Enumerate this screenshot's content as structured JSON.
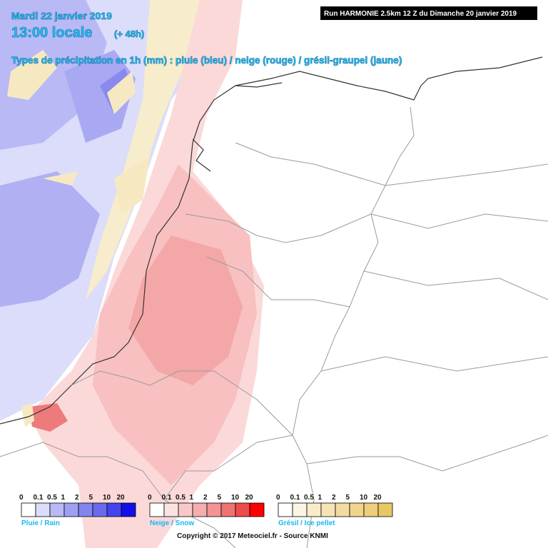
{
  "header": {
    "date": "Mardi 22 janvier 2019",
    "time": "13:00 locale",
    "lead": "(+ 48h)",
    "subtitle": "Types de précipitation en 1h (mm) : pluie (bleu) / neige (rouge) / grésil-graupel (jaune)",
    "run": "Run HARMONIE 2.5km 12 Z du Dimanche 20 janvier 2019"
  },
  "legends": [
    {
      "name": "Pluie / Rain",
      "ticks": [
        "0",
        "0.1",
        "0.5",
        "1",
        "2",
        "5",
        "10",
        "20"
      ]
    },
    {
      "name": "Neige / Snow",
      "ticks": [
        "0",
        "0.1",
        "0.5",
        "1",
        "2",
        "5",
        "10",
        "20"
      ]
    },
    {
      "name": "Grésil / Ice pellet",
      "ticks": [
        "0",
        "0.1",
        "0.5",
        "1",
        "2",
        "5",
        "10",
        "20"
      ]
    }
  ],
  "footer": {
    "copyright": "Copyright © 2017 Meteociel.fr - Source KNMI"
  }
}
